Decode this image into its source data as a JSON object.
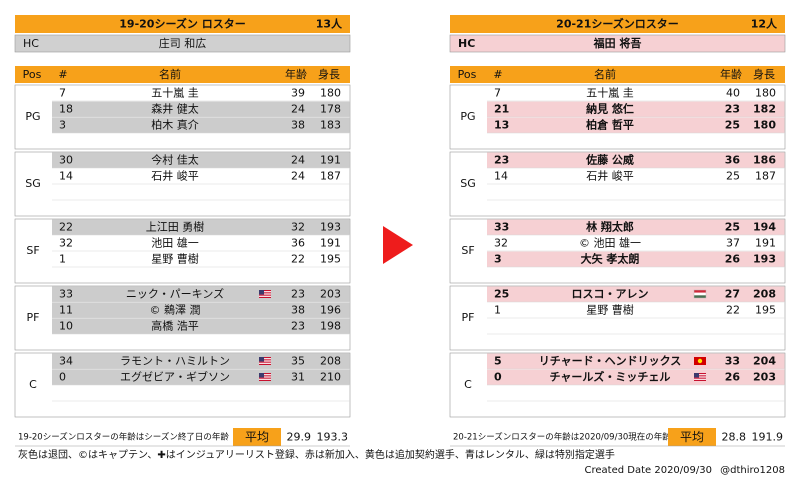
{
  "tables": [
    {
      "title": "19-20シーズン ロスター",
      "count": "13人",
      "hc": {
        "label": "HC",
        "name": "庄司 和広",
        "fill": "#d0d0d0"
      },
      "columns": [
        "Pos",
        "#",
        "名前",
        "年齢",
        "身長"
      ],
      "groups": [
        {
          "pos": "PG",
          "rows": [
            {
              "num": 7,
              "name": "五十嵐 圭",
              "age": 39,
              "height": 180
            },
            {
              "num": 18,
              "name": "森井 健太",
              "age": 24,
              "height": 178,
              "fill": "#cccccc"
            },
            {
              "num": 3,
              "name": "柏木 真介",
              "age": 38,
              "height": 183,
              "fill": "#cccccc"
            }
          ]
        },
        {
          "pos": "SG",
          "rows": [
            {
              "num": 30,
              "name": "今村 佳太",
              "age": 24,
              "height": 191,
              "fill": "#cccccc"
            },
            {
              "num": 14,
              "name": "石井 峻平",
              "age": 24,
              "height": 187
            }
          ]
        },
        {
          "pos": "SF",
          "rows": [
            {
              "num": 22,
              "name": "上江田 勇樹",
              "age": 32,
              "height": 193,
              "fill": "#cccccc"
            },
            {
              "num": 32,
              "name": "池田 雄一",
              "age": 36,
              "height": 191
            },
            {
              "num": 1,
              "name": "星野 曹樹",
              "age": 22,
              "height": 195
            }
          ]
        },
        {
          "pos": "PF",
          "rows": [
            {
              "num": 33,
              "name": "ニック・パーキンズ",
              "flag": "US",
              "age": 23,
              "height": 203,
              "fill": "#cccccc"
            },
            {
              "num": 11,
              "name": "© 鵜澤 潤",
              "age": 38,
              "height": 196,
              "fill": "#cccccc"
            },
            {
              "num": 10,
              "name": "高橋 浩平",
              "age": 23,
              "height": 198,
              "fill": "#cccccc"
            }
          ]
        },
        {
          "pos": "C",
          "rows": [
            {
              "num": 34,
              "name": "ラモント・ハミルトン",
              "flag": "US",
              "age": 35,
              "height": 208,
              "fill": "#cccccc"
            },
            {
              "num": 0,
              "name": "エグゼビア・ギブソン",
              "flag": "US",
              "age": 31,
              "height": 210,
              "fill": "#cccccc"
            }
          ]
        }
      ],
      "footer": {
        "note": "19-20シーズンロスターの年齢はシーズン終了日の年齢",
        "avg_label": "平均",
        "avg_age": 29.9,
        "avg_height": 193.3
      }
    },
    {
      "title": "20-21シーズンロスター",
      "count": "12人",
      "hc": {
        "label": "HC",
        "name": "福田 将吾",
        "fill": "#f6d0d3"
      },
      "columns": [
        "Pos",
        "#",
        "名前",
        "年齢",
        "身長"
      ],
      "groups": [
        {
          "pos": "PG",
          "rows": [
            {
              "num": 7,
              "name": "五十嵐 圭",
              "age": 40,
              "height": 180
            },
            {
              "num": 21,
              "name": "納見 悠仁",
              "age": 23,
              "height": 182,
              "fill": "#f6d0d3",
              "bold": true
            },
            {
              "num": 13,
              "name": "柏倉 哲平",
              "age": 25,
              "height": 180,
              "fill": "#f6d0d3",
              "bold": true
            }
          ]
        },
        {
          "pos": "SG",
          "rows": [
            {
              "num": 23,
              "name": "佐藤 公威",
              "age": 36,
              "height": 186,
              "fill": "#f6d0d3",
              "bold": true
            },
            {
              "num": 14,
              "name": "石井 峻平",
              "age": 25,
              "height": 187
            }
          ]
        },
        {
          "pos": "SF",
          "rows": [
            {
              "num": 33,
              "name": "林 翔太郎",
              "age": 25,
              "height": 194,
              "fill": "#f6d0d3",
              "bold": true
            },
            {
              "num": 32,
              "name": "© 池田 雄一",
              "age": 37,
              "height": 191
            },
            {
              "num": 3,
              "name": "大矢 孝太朗",
              "age": 26,
              "height": 193,
              "fill": "#f6d0d3",
              "bold": true
            }
          ]
        },
        {
          "pos": "PF",
          "rows": [
            {
              "num": 25,
              "name": "ロスコ・アレン",
              "flag": "HU",
              "age": 27,
              "height": 208,
              "fill": "#f6d0d3",
              "bold": true
            },
            {
              "num": 1,
              "name": "星野 曹樹",
              "age": 22,
              "height": 195
            }
          ]
        },
        {
          "pos": "C",
          "rows": [
            {
              "num": 5,
              "name": "リチャード・ヘンドリックス",
              "flag": "MK",
              "age": 33,
              "height": 204,
              "fill": "#f6d0d3",
              "bold": true
            },
            {
              "num": 0,
              "name": "チャールズ・ミッチェル",
              "flag": "US",
              "age": 26,
              "height": 203,
              "fill": "#f6d0d3",
              "bold": true
            }
          ]
        }
      ],
      "footer": {
        "note": "20-21シーズンロスターの年齢は2020/09/30現在の年齢",
        "avg_label": "平均",
        "avg_age": 28.8,
        "avg_height": 191.9
      }
    }
  ],
  "legend": "灰色は退団、©はキャプテン、✚はインジュアリーリスト登録、赤は新加入、黄色は追加契約選手、青はレンタル、緑は特別指定選手",
  "created": "Created Date 2020/09/30",
  "author": "@dthiro1208"
}
